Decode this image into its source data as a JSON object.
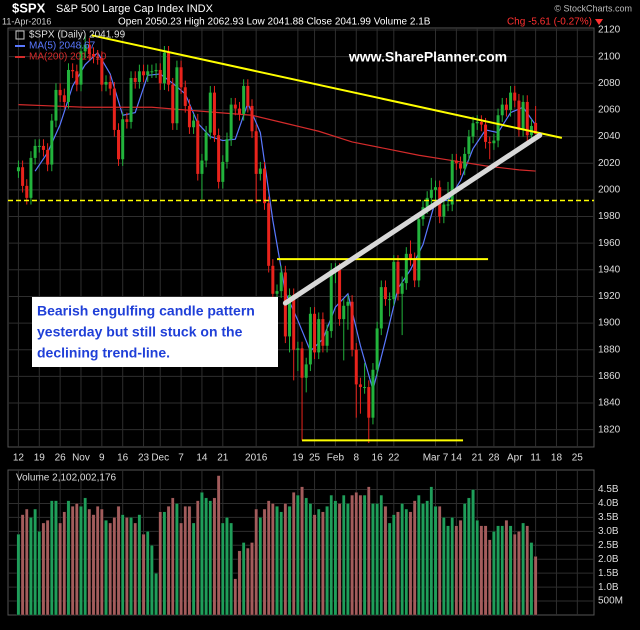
{
  "chart_data": [
    {
      "type": "candlestick",
      "title": "$SPX",
      "subtitle": "S&P 500 Large Cap Index INDX",
      "date": "11-Apr-2016",
      "quote": "Open 2050.23  High 2062.93  Low 2041.88  Close 2041.99  Volume 2.1B",
      "change": "Chg -5.61 (-0.27%)",
      "change_color": "#ff3030",
      "source": "© StockCharts.com",
      "watermark": "www.SharePlanner.com",
      "note": [
        "Bearish engulfing candle pattern",
        "yesterday but still stuck on the",
        "declining trend-line."
      ],
      "series": [
        {
          "name": "$SPX (Daily) 2041.99",
          "up_color": "#22b33c",
          "down_color": "#e8231c",
          "open": [
            2014,
            2017,
            2003,
            1994,
            2024,
            2033,
            2033,
            2030,
            2019,
            2052,
            2075,
            2071,
            2066,
            2090,
            2089,
            2079,
            2104,
            2109,
            2102,
            2100,
            2099,
            2079,
            2081,
            2076,
            2045,
            2023,
            2053,
            2051,
            2084,
            2081,
            2089,
            2086,
            2089,
            2089,
            2090,
            2080,
            2103,
            2079,
            2050,
            2092,
            2077,
            2063,
            2047,
            2052,
            2012,
            2022,
            2043,
            2073,
            2041,
            2006,
            2021,
            2038,
            2064,
            2061,
            2057,
            2078,
            2063,
            2044,
            2012,
            2016,
            1990,
            1943,
            1922,
            1924,
            1938,
            1890,
            1921,
            1880,
            1881,
            1859,
            1869,
            1907,
            1878,
            1903,
            1883,
            1894,
            1940,
            1940,
            1903,
            1913,
            1916,
            1880,
            1854,
            1852,
            1852,
            1829,
            1865,
            1896,
            1927,
            1918,
            1918,
            1946,
            1922,
            1930,
            1952,
            1948,
            1932,
            1978,
            1987,
            1994,
            2000,
            2002,
            1980,
            1989,
            1989,
            2022,
            2020,
            2016,
            2027,
            2040,
            2050,
            2051,
            2049,
            2036,
            2035,
            2037,
            2056,
            2064,
            2060,
            2073,
            2067,
            2045,
            2066,
            2041,
            2050.23
          ],
          "high": [
            2022,
            2022,
            2008,
            2029,
            2038,
            2038,
            2038,
            2035,
            2057,
            2080,
            2080,
            2076,
            2095,
            2095,
            2094,
            2109,
            2116,
            2114,
            2107,
            2105,
            2104,
            2086,
            2086,
            2081,
            2050,
            2058,
            2058,
            2089,
            2089,
            2094,
            2094,
            2094,
            2094,
            2095,
            2095,
            2108,
            2108,
            2084,
            2097,
            2097,
            2082,
            2068,
            2057,
            2057,
            2027,
            2048,
            2078,
            2078,
            2046,
            2026,
            2043,
            2069,
            2069,
            2066,
            2083,
            2083,
            2068,
            2049,
            2021,
            2021,
            1995,
            1948,
            1929,
            1943,
            1943,
            1926,
            1926,
            1886,
            1886,
            1874,
            1912,
            1912,
            1908,
            1908,
            1899,
            1945,
            1945,
            1945,
            1918,
            1921,
            1921,
            1885,
            1859,
            1870,
            1857,
            1870,
            1901,
            1932,
            1932,
            1923,
            1951,
            1951,
            1935,
            1957,
            1962,
            1953,
            1983,
            1992,
            1999,
            2009,
            2007,
            2007,
            1994,
            2006,
            2027,
            2027,
            2025,
            2032,
            2045,
            2055,
            2056,
            2056,
            2054,
            2040,
            2042,
            2061,
            2069,
            2069,
            2078,
            2078,
            2072,
            2071,
            2071,
            2053,
            2062.93
          ],
          "low": [
            2009,
            1998,
            1989,
            1989,
            2019,
            2028,
            2025,
            2014,
            2014,
            2047,
            2066,
            2061,
            2061,
            2084,
            2074,
            2074,
            2099,
            2097,
            2095,
            2094,
            2074,
            2074,
            2071,
            2040,
            2018,
            2018,
            2046,
            2046,
            2076,
            2076,
            2081,
            2081,
            2084,
            2084,
            2075,
            2075,
            2074,
            2045,
            2045,
            2072,
            2058,
            2042,
            2042,
            2007,
            1993,
            2017,
            2038,
            2036,
            2001,
            2001,
            2016,
            2033,
            2056,
            2052,
            2052,
            2058,
            2039,
            1990,
            2007,
            1985,
            1938,
            1917,
            1917,
            1919,
            1885,
            1878,
            1857,
            1864,
            1812,
            1848,
            1864,
            1873,
            1873,
            1878,
            1878,
            1889,
            1930,
            1898,
            1872,
            1895,
            1875,
            1829,
            1832,
            1847,
            1810,
            1824,
            1860,
            1891,
            1913,
            1905,
            1913,
            1917,
            1891,
            1925,
            1943,
            1927,
            1927,
            1973,
            1982,
            1989,
            1990,
            1975,
            1975,
            1984,
            1984,
            2015,
            2011,
            2011,
            2022,
            2035,
            2045,
            2044,
            2031,
            2023,
            2030,
            2032,
            2051,
            2055,
            2055,
            2062,
            2040,
            2040,
            2036,
            2036,
            2041.88
          ],
          "close": [
            2017,
            2003,
            1994,
            2024,
            2033,
            2033,
            2030,
            2019,
            2052,
            2075,
            2071,
            2066,
            2090,
            2089,
            2079,
            2104,
            2109,
            2102,
            2100,
            2099,
            2079,
            2081,
            2076,
            2045,
            2023,
            2053,
            2051,
            2084,
            2081,
            2089,
            2086,
            2089,
            2089,
            2090,
            2080,
            2103,
            2079,
            2050,
            2092,
            2077,
            2063,
            2047,
            2052,
            2012,
            2022,
            2043,
            2073,
            2041,
            2006,
            2021,
            2038,
            2064,
            2061,
            2057,
            2078,
            2063,
            2044,
            2012,
            2016,
            1990,
            1943,
            1922,
            1924,
            1938,
            1890,
            1921,
            1880,
            1881,
            1859,
            1869,
            1907,
            1878,
            1903,
            1883,
            1894,
            1940,
            1940,
            1903,
            1913,
            1916,
            1880,
            1854,
            1852,
            1852,
            1829,
            1865,
            1896,
            1927,
            1918,
            1918,
            1946,
            1922,
            1930,
            1952,
            1948,
            1932,
            1978,
            1987,
            1994,
            2000,
            2002,
            1980,
            1989,
            1989,
            2022,
            2020,
            2016,
            2027,
            2040,
            2050,
            2051,
            2049,
            2036,
            2035,
            2037,
            2056,
            2064,
            2060,
            2073,
            2067,
            2045,
            2066,
            2041,
            2048,
            2041.99
          ]
        },
        {
          "name": "MA(5) 2048.67",
          "color": "#5a78ff",
          "x": [
            4,
            7,
            10,
            13,
            16,
            19,
            22,
            25,
            28,
            31,
            34,
            37,
            40,
            43,
            46,
            49,
            52,
            55,
            58,
            61,
            64,
            67,
            70,
            73,
            76,
            79,
            82,
            85,
            88,
            91,
            94,
            97,
            100,
            103,
            106,
            109,
            112,
            115,
            118,
            121,
            124
          ],
          "values": [
            2014,
            2028,
            2049,
            2078,
            2094,
            2103,
            2087,
            2056,
            2058,
            2086,
            2087,
            2080,
            2072,
            2050,
            2040,
            2037,
            2038,
            2065,
            2043,
            1977,
            1923,
            1902,
            1879,
            1888,
            1912,
            1922,
            1883,
            1850,
            1887,
            1926,
            1940,
            1959,
            1992,
            1992,
            2007,
            2031,
            2045,
            2043,
            2058,
            2062,
            2048.67
          ]
        },
        {
          "name": "MA(200) 2014.10",
          "color": "#d42b2b",
          "x": [
            0,
            8,
            16,
            24,
            32,
            40,
            48,
            56,
            64,
            72,
            80,
            88,
            96,
            104,
            112,
            120,
            124
          ],
          "values": [
            2064,
            2063,
            2062,
            2062,
            2062,
            2060,
            2058,
            2056,
            2050,
            2044,
            2036,
            2031,
            2026,
            2022,
            2018,
            2015,
            2014.1
          ]
        }
      ],
      "lines": [
        {
          "color": "#ffff00",
          "style": "solid",
          "x": [
            17.6,
            130.3
          ],
          "y": [
            2116,
            2039
          ]
        },
        {
          "color": "#ffff00",
          "style": "solid",
          "x": [
            62,
            112.6
          ],
          "y": [
            1948,
            1948
          ]
        },
        {
          "color": "#ffff00",
          "style": "solid",
          "x": [
            68,
            106.6
          ],
          "y": [
            1812,
            1812
          ]
        },
        {
          "color": "#ffff00",
          "style": "dashed",
          "x": [
            -2.5,
            138
          ],
          "y": [
            1992,
            1992
          ]
        },
        {
          "color": "#d8d8d8",
          "style": "arrow",
          "x": [
            64,
            125
          ],
          "y": [
            1915,
            2041
          ]
        }
      ],
      "xlim": [
        -2.5,
        138
      ],
      "xticks": [
        {
          "value": 0,
          "label": "12"
        },
        {
          "value": 5,
          "label": "19"
        },
        {
          "value": 10,
          "label": "26"
        },
        {
          "value": 15,
          "label": "Nov"
        },
        {
          "value": 20,
          "label": "9"
        },
        {
          "value": 25,
          "label": "16"
        },
        {
          "value": 30,
          "label": "23"
        },
        {
          "value": 34,
          "label": "Dec"
        },
        {
          "value": 39,
          "label": "7"
        },
        {
          "value": 44,
          "label": "14"
        },
        {
          "value": 49,
          "label": "21"
        },
        {
          "value": 57,
          "label": "2016"
        },
        {
          "value": 67,
          "label": "19"
        },
        {
          "value": 71,
          "label": "25"
        },
        {
          "value": 76,
          "label": "Feb"
        },
        {
          "value": 81,
          "label": "8"
        },
        {
          "value": 86,
          "label": "16"
        },
        {
          "value": 90,
          "label": "22"
        },
        {
          "value": 100,
          "label": "Mar 7"
        },
        {
          "value": 105,
          "label": "14"
        },
        {
          "value": 110,
          "label": "21"
        },
        {
          "value": 114,
          "label": "28"
        },
        {
          "value": 119,
          "label": "Apr"
        },
        {
          "value": 124,
          "label": "11"
        },
        {
          "value": 129,
          "label": "18"
        },
        {
          "value": 134,
          "label": "25"
        }
      ],
      "ylim": [
        1807,
        2121.5
      ],
      "yticks": [
        2120,
        2100,
        2080,
        2060,
        2040,
        2020,
        2000,
        1980,
        1960,
        1940,
        1920,
        1900,
        1880,
        1860,
        1840,
        1820
      ],
      "grid": true
    },
    {
      "type": "volume",
      "title": "Volume 2,102,002,176",
      "up_color": "#1f9e5a",
      "down_color": "#a35c5c",
      "values": [
        2900000000.0,
        3600000000.0,
        3800000000.0,
        3500000000.0,
        3800000000.0,
        3000000000.0,
        3300000000.0,
        3400000000.0,
        4100000000.0,
        4100000000.0,
        3300000000.0,
        3700000000.0,
        4100000000.0,
        3900000000.0,
        4000000000.0,
        3900000000.0,
        4200000000.0,
        3800000000.0,
        3600000000.0,
        3900000000.0,
        3800000000.0,
        3400000000.0,
        3300000000.0,
        3500000000.0,
        3900000000.0,
        3600000000.0,
        3500000000.0,
        3500000000.0,
        3300000000.0,
        3600000000.0,
        2900000000.0,
        3000000000.0,
        2500000000.0,
        1500000000.0,
        3700000000.0,
        3700000000.0,
        3900000000.0,
        4200000000.0,
        4000000000.0,
        3300000000.0,
        3900000000.0,
        3900000000.0,
        3300000000.0,
        4100000000.0,
        4400000000.0,
        4200000000.0,
        4100000000.0,
        4200000000.0,
        5000000000.0,
        3300000000.0,
        3500000000.0,
        3300000000.0,
        1300000000.0,
        2300000000.0,
        2600000000.0,
        2400000000.0,
        2600000000.0,
        3800000000.0,
        3500000000.0,
        3800000000.0,
        4100000000.0,
        4000000000.0,
        3900000000.0,
        3700000000.0,
        4000000000.0,
        3900000000.0,
        4400000000.0,
        4300000000.0,
        4600000000.0,
        4200000000.0,
        4000000000.0,
        3600000000.0,
        3800000000.0,
        3700000000.0,
        3900000000.0,
        4300000000.0,
        4100000000.0,
        4000000000.0,
        4300000000.0,
        4000000000.0,
        4300000000.0,
        4400000000.0,
        4300000000.0,
        4300000000.0,
        4600000000.0,
        4000000000.0,
        4000000000.0,
        4300000000.0,
        3900000000.0,
        3300000000.0,
        3600000000.0,
        3700000000.0,
        4000000000.0,
        3800000000.0,
        3700000000.0,
        4100000000.0,
        4300000000.0,
        4000000000.0,
        4100000000.0,
        4600000000.0,
        3900000000.0,
        3900000000.0,
        3500000000.0,
        3200000000.0,
        3500000000.0,
        3200000000.0,
        3400000000.0,
        4000000000.0,
        4200000000.0,
        4500000000.0,
        3400000000.0,
        3200000000.0,
        3200000000.0,
        2700000000.0,
        3000000000.0,
        3200000000.0,
        3200000000.0,
        3400000000.0,
        3200000000.0,
        2900000000.0,
        3000000000.0,
        3300000000.0,
        3200000000.0,
        2600000000.0,
        2102002176
      ],
      "ylim": [
        0,
        5200000000.0
      ],
      "yticks": [
        {
          "value": 4500000000.0,
          "label": "4.5B"
        },
        {
          "value": 4000000000.0,
          "label": "4.0B"
        },
        {
          "value": 3500000000.0,
          "label": "3.5B"
        },
        {
          "value": 3000000000.0,
          "label": "3.0B"
        },
        {
          "value": 2500000000.0,
          "label": "2.5B"
        },
        {
          "value": 2000000000.0,
          "label": "2.0B"
        },
        {
          "value": 1500000000.0,
          "label": "1.5B"
        },
        {
          "value": 1000000000.0,
          "label": "1.0B"
        },
        {
          "value": 500000000.0,
          "label": "500M"
        }
      ],
      "grid": true
    }
  ]
}
